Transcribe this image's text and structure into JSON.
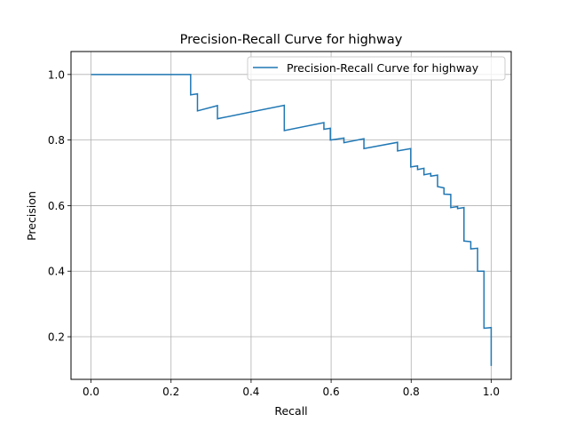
{
  "chart_data": {
    "type": "line",
    "title": "Precision-Recall Curve for highway",
    "xlabel": "Recall",
    "ylabel": "Precision",
    "xlim": [
      -0.05,
      1.05
    ],
    "ylim": [
      0.07,
      1.07
    ],
    "xticks": [
      0.0,
      0.2,
      0.4,
      0.6,
      0.8,
      1.0
    ],
    "xtick_labels": [
      "0.0",
      "0.2",
      "0.4",
      "0.6",
      "0.8",
      "1.0"
    ],
    "yticks": [
      0.2,
      0.4,
      0.6,
      0.8,
      1.0
    ],
    "ytick_labels": [
      "0.2",
      "0.4",
      "0.6",
      "0.8",
      "1.0"
    ],
    "grid": true,
    "legend_position": "top-right",
    "series": [
      {
        "name": "Precision-Recall Curve for highway",
        "color": "#1f77b4",
        "x": [
          0.0,
          0.0,
          0.249,
          0.249,
          0.266,
          0.266,
          0.316,
          0.316,
          0.483,
          0.483,
          0.582,
          0.582,
          0.598,
          0.598,
          0.632,
          0.632,
          0.682,
          0.682,
          0.766,
          0.766,
          0.799,
          0.799,
          0.816,
          0.816,
          0.832,
          0.832,
          0.849,
          0.849,
          0.866,
          0.866,
          0.882,
          0.882,
          0.899,
          0.899,
          0.916,
          0.916,
          0.932,
          0.932,
          0.949,
          0.949,
          0.966,
          0.966,
          0.982,
          0.982,
          1.0,
          1.0
        ],
        "y": [
          1.0,
          1.0,
          1.0,
          0.938,
          0.941,
          0.889,
          0.905,
          0.865,
          0.906,
          0.829,
          0.853,
          0.833,
          0.836,
          0.8,
          0.806,
          0.792,
          0.804,
          0.774,
          0.793,
          0.767,
          0.774,
          0.718,
          0.721,
          0.71,
          0.714,
          0.694,
          0.698,
          0.69,
          0.693,
          0.658,
          0.654,
          0.635,
          0.634,
          0.594,
          0.597,
          0.591,
          0.594,
          0.492,
          0.49,
          0.468,
          0.47,
          0.4,
          0.4,
          0.226,
          0.228,
          0.111
        ]
      }
    ]
  }
}
